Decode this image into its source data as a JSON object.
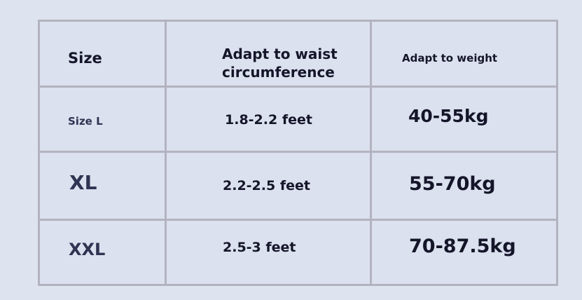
{
  "headers": {
    "size": "Size",
    "waist_line1": "Adapt to waist",
    "waist_line2": "circumference",
    "weight": "Adapt to weight"
  },
  "rows": [
    {
      "size": "Size L",
      "waist": "1.8-2.2 feet",
      "weight": "40-55kg"
    },
    {
      "size": "XL",
      "waist": "2.2-2.5 feet",
      "weight": "55-70kg"
    },
    {
      "size": "XXL",
      "waist": "2.5-3 feet",
      "weight": "70-87.5kg"
    }
  ],
  "colors": {
    "background": "#dde4ef",
    "border": "#b3b3bf",
    "text": "#15152a",
    "size_label": "#2e3452"
  }
}
